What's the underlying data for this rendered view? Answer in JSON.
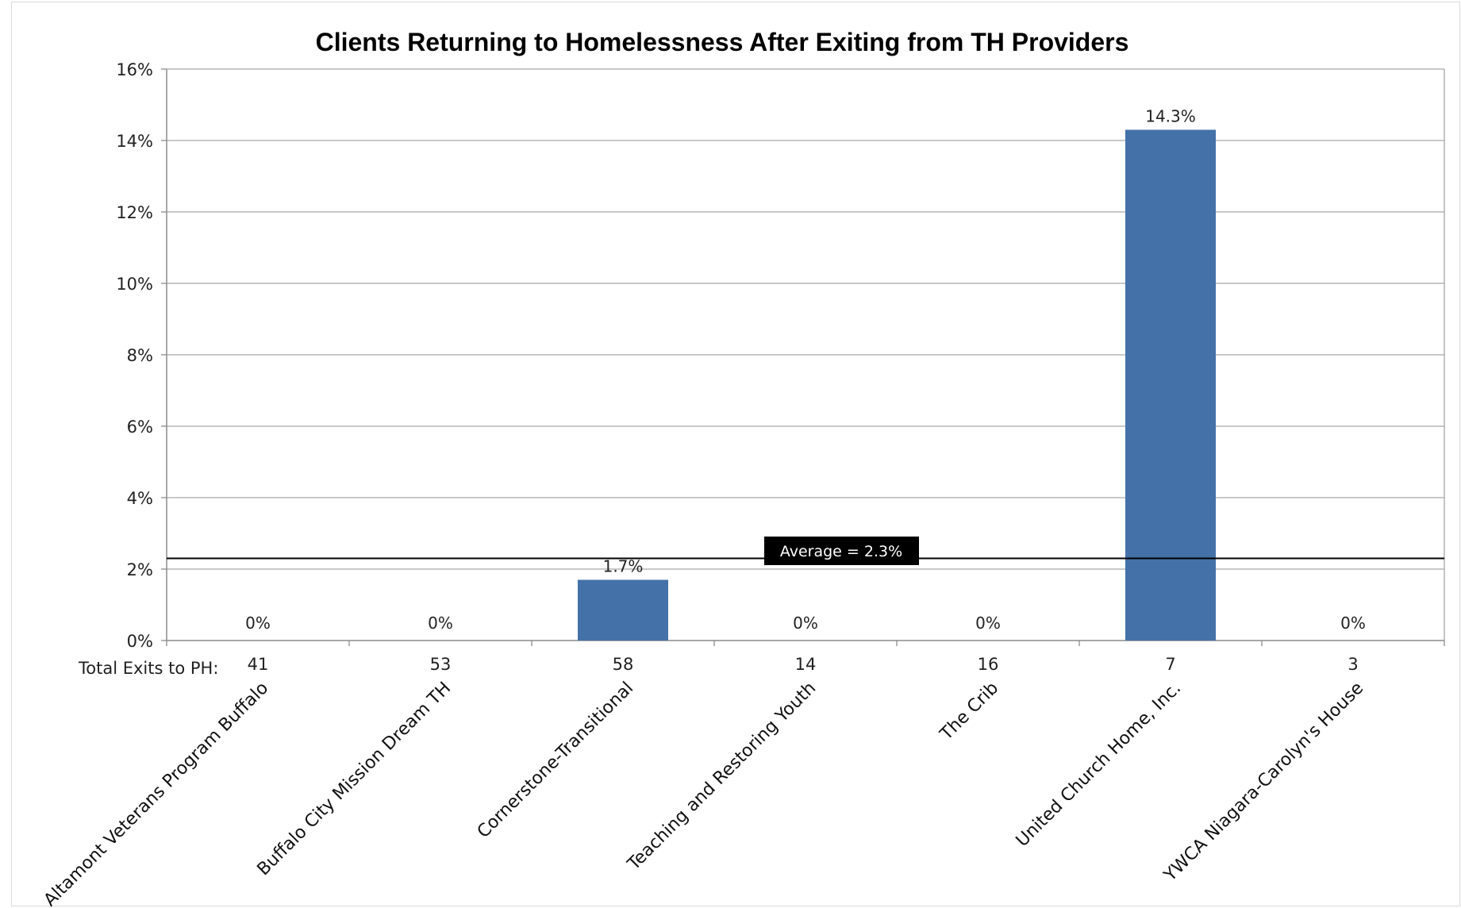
{
  "chart_data": {
    "type": "bar",
    "title": "Clients Returning to Homelessness After Exiting from TH Providers",
    "xlabel": "",
    "ylabel": "",
    "ylim": [
      0,
      16
    ],
    "y_ticks": [
      "0%",
      "2%",
      "4%",
      "6%",
      "8%",
      "10%",
      "12%",
      "14%",
      "16%"
    ],
    "grid": true,
    "categories": [
      "Altamont Veterans Program Buffalo",
      "Buffalo City Mission Dream TH",
      "Cornerstone-Transitional",
      "Teaching and Restoring Youth",
      "The Crib",
      "United Church Home, Inc.",
      "YWCA Niagara-Carolyn's House"
    ],
    "values": [
      0,
      0,
      1.7,
      0,
      0,
      14.3,
      0
    ],
    "data_labels": [
      "0%",
      "0%",
      "1.7%",
      "0%",
      "0%",
      "14.3%",
      "0%"
    ],
    "bar_color": "#4472a8",
    "exits_row_label": "Total Exits to PH:",
    "total_exits_to_ph": [
      "41",
      "53",
      "58",
      "14",
      "16",
      "7",
      "3"
    ],
    "average": {
      "value": 2.3,
      "label": "Average = 2.3%"
    }
  }
}
